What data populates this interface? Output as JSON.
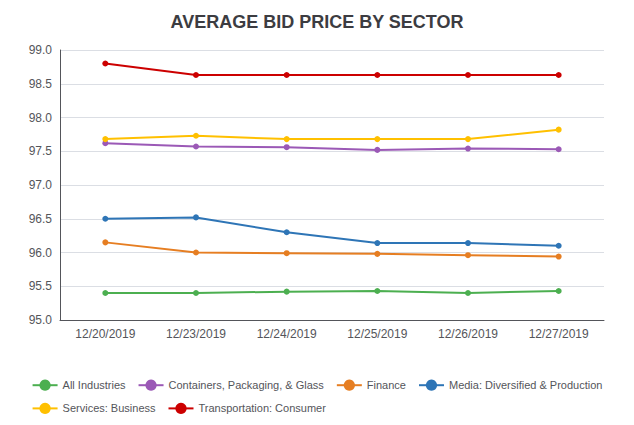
{
  "chart_data": {
    "type": "line",
    "title": "AVERAGE BID PRICE BY SECTOR",
    "categories": [
      "12/20/2019",
      "12/23/2019",
      "12/24/2019",
      "12/25/2019",
      "12/26/2019",
      "12/27/2019"
    ],
    "series": [
      {
        "name": "All Industries",
        "color": "#4CAF50",
        "values": [
          95.4,
          95.4,
          95.42,
          95.43,
          95.4,
          95.43
        ]
      },
      {
        "name": "Containers, Packaging, & Glass",
        "color": "#9B59B6",
        "values": [
          97.62,
          97.57,
          97.56,
          97.52,
          97.54,
          97.53
        ]
      },
      {
        "name": "Finance",
        "color": "#E67E22",
        "values": [
          96.15,
          96.0,
          95.99,
          95.98,
          95.96,
          95.94
        ]
      },
      {
        "name": "Media: Diversified & Production",
        "color": "#2E75B6",
        "values": [
          96.5,
          96.52,
          96.3,
          96.14,
          96.14,
          96.1
        ]
      },
      {
        "name": "Services: Business",
        "color": "#FFC000",
        "values": [
          97.68,
          97.73,
          97.68,
          97.68,
          97.68,
          97.82
        ]
      },
      {
        "name": "Transportation: Consumer",
        "color": "#CC0000",
        "values": [
          98.8,
          98.63,
          98.63,
          98.63,
          98.63,
          98.63
        ]
      }
    ],
    "marker": "circle",
    "ylim": [
      95.0,
      99.0
    ],
    "yticks": [
      {
        "value": 95,
        "label": "95.0"
      },
      95.5,
      {
        "value": 96,
        "label": "96.0"
      },
      96.5,
      {
        "value": 97,
        "label": "97.0"
      },
      97.5,
      {
        "value": 98,
        "label": "98.0"
      },
      98.5,
      {
        "value": 99,
        "label": "99.0"
      }
    ],
    "grid": true,
    "legend": "bottom"
  }
}
